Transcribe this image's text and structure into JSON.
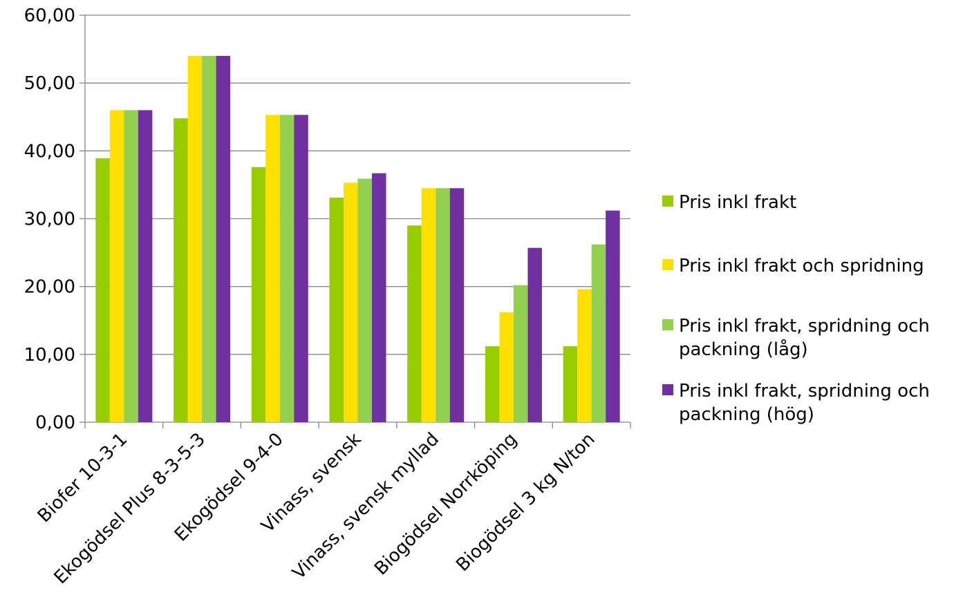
{
  "chart_data": {
    "type": "bar",
    "categories": [
      "Biofer 10-3-1",
      "Ekogödsel Plus 8-3-5-3",
      "Ekogödsel 9-4-0",
      "Vinass, svensk",
      "Vinass, svensk myllad",
      "Biogödsel Norrköping",
      "Biogödsel 3 kg N/ton"
    ],
    "series": [
      {
        "name": "Pris inkl frakt",
        "color": "#99cc00",
        "values": [
          38.9,
          44.8,
          37.6,
          33.1,
          29.0,
          11.2,
          11.2
        ]
      },
      {
        "name": "Pris inkl frakt och spridning",
        "color": "#ffe000",
        "values": [
          46.0,
          54.0,
          45.3,
          35.3,
          34.5,
          16.2,
          19.6
        ]
      },
      {
        "name": "Pris inkl frakt, spridning och packning (låg)",
        "color": "#92d050",
        "values": [
          46.0,
          54.0,
          45.3,
          35.9,
          34.5,
          20.2,
          26.2
        ]
      },
      {
        "name": "Pris inkl frakt, spridning och packning (hög)",
        "color": "#7030a0",
        "values": [
          46.0,
          54.0,
          45.3,
          36.7,
          34.5,
          25.7,
          31.2
        ]
      }
    ],
    "yticks": [
      "0,00",
      "10,00",
      "20,00",
      "30,00",
      "40,00",
      "50,00",
      "60,00"
    ],
    "ytick_values": [
      0,
      10,
      20,
      30,
      40,
      50,
      60
    ],
    "ylim": [
      0,
      60
    ],
    "grid": true,
    "legend_position": "right",
    "title": "",
    "xlabel": "",
    "ylabel": ""
  }
}
